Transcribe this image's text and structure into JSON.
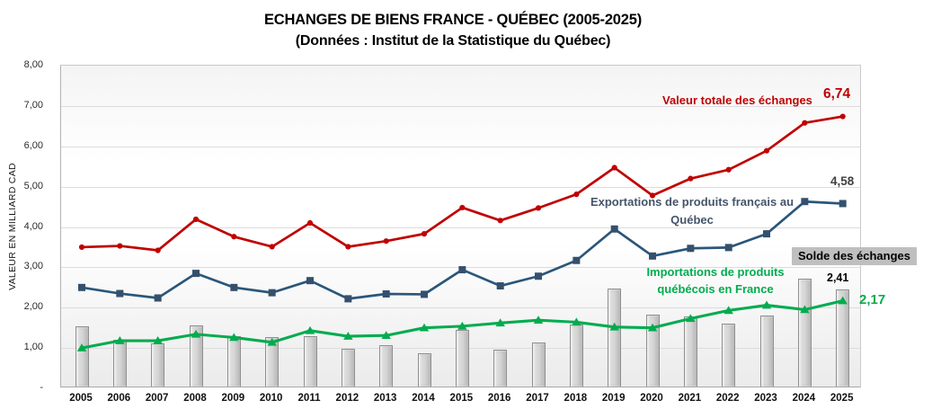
{
  "header": {
    "title": "ECHANGES DE BIENS FRANCE - QUÉBEC (2005-2025)",
    "subtitle": "(Données : Institut de la Statistique du Québec)"
  },
  "axes": {
    "y_title": "VALEUR EN MILLIARD CAD",
    "yticks": [
      "8,00",
      "7,00",
      "6,00",
      "5,00",
      "4,00",
      "3,00",
      "2,00",
      "1,00",
      "-"
    ]
  },
  "annotations": {
    "total_label": "Valeur totale des échanges",
    "total_value": "6,74",
    "exports_label": "Exportations de produits français au\nQuébec",
    "exports_value": "4,58",
    "solde_label": "Solde des échanges",
    "solde_value": "2,41",
    "imports_label": "Importations de produits\nquébécois en France",
    "imports_value": "2,17"
  },
  "chart_data": {
    "type": "combo",
    "categories": [
      "2005",
      "2006",
      "2007",
      "2008",
      "2009",
      "2010",
      "2011",
      "2012",
      "2013",
      "2014",
      "2015",
      "2016",
      "2017",
      "2018",
      "2019",
      "2020",
      "2021",
      "2022",
      "2023",
      "2024",
      "2025"
    ],
    "series": [
      {
        "name": "Valeur totale des échanges",
        "type": "line",
        "marker": "circle",
        "color": "#c00000",
        "values": [
          3.5,
          3.53,
          3.42,
          4.19,
          3.76,
          3.51,
          4.1,
          3.51,
          3.65,
          3.83,
          4.48,
          4.16,
          4.47,
          4.81,
          5.47,
          4.78,
          5.2,
          5.42,
          5.89,
          6.58,
          6.74
        ]
      },
      {
        "name": "Exportations de produits français au Québec",
        "type": "line",
        "marker": "square",
        "color": "#2a567a",
        "marker_color": "#35506c",
        "values": [
          2.5,
          2.35,
          2.24,
          2.85,
          2.5,
          2.37,
          2.67,
          2.22,
          2.34,
          2.33,
          2.94,
          2.54,
          2.78,
          3.17,
          3.95,
          3.28,
          3.47,
          3.49,
          3.83,
          4.63,
          4.58
        ]
      },
      {
        "name": "Importations de produits québécois en France",
        "type": "line",
        "marker": "triangle",
        "color": "#00ac4e",
        "values": [
          1.0,
          1.18,
          1.18,
          1.34,
          1.26,
          1.14,
          1.43,
          1.29,
          1.31,
          1.5,
          1.54,
          1.62,
          1.69,
          1.64,
          1.52,
          1.5,
          1.73,
          1.93,
          2.06,
          1.95,
          2.17
        ]
      },
      {
        "name": "Solde des échanges",
        "type": "bar",
        "color": "#d9d9d9",
        "values": [
          1.5,
          1.17,
          1.06,
          1.51,
          1.24,
          1.23,
          1.24,
          0.93,
          1.03,
          0.83,
          1.4,
          0.92,
          1.09,
          1.53,
          2.43,
          1.78,
          1.74,
          1.56,
          1.77,
          2.68,
          2.41
        ]
      }
    ],
    "ylabel": "VALEUR EN MILLIARD CAD",
    "ylim": [
      0,
      8
    ],
    "grid": true,
    "legend": "inline-labels"
  }
}
